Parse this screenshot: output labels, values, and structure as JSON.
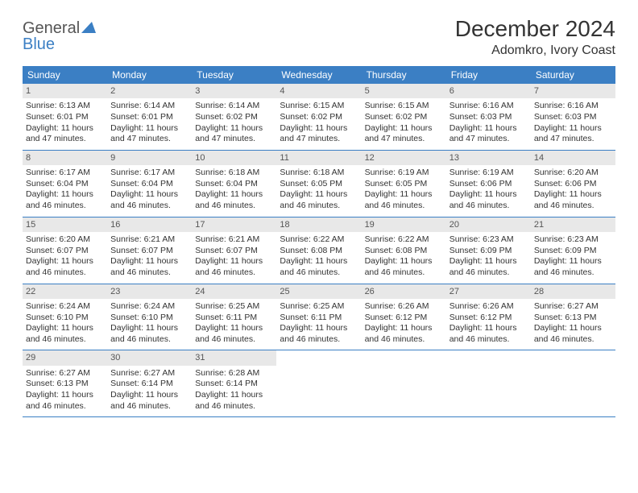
{
  "brand": {
    "part1": "General",
    "part2": "Blue"
  },
  "title": "December 2024",
  "location": "Adomkro, Ivory Coast",
  "colors": {
    "header_bg": "#3b7fc4",
    "header_fg": "#ffffff",
    "daynum_bg": "#e8e8e8",
    "text": "#333333"
  },
  "weekdays": [
    "Sunday",
    "Monday",
    "Tuesday",
    "Wednesday",
    "Thursday",
    "Friday",
    "Saturday"
  ],
  "weeks": [
    [
      {
        "n": "1",
        "sr": "6:13 AM",
        "ss": "6:01 PM",
        "dl": "11 hours and 47 minutes."
      },
      {
        "n": "2",
        "sr": "6:14 AM",
        "ss": "6:01 PM",
        "dl": "11 hours and 47 minutes."
      },
      {
        "n": "3",
        "sr": "6:14 AM",
        "ss": "6:02 PM",
        "dl": "11 hours and 47 minutes."
      },
      {
        "n": "4",
        "sr": "6:15 AM",
        "ss": "6:02 PM",
        "dl": "11 hours and 47 minutes."
      },
      {
        "n": "5",
        "sr": "6:15 AM",
        "ss": "6:02 PM",
        "dl": "11 hours and 47 minutes."
      },
      {
        "n": "6",
        "sr": "6:16 AM",
        "ss": "6:03 PM",
        "dl": "11 hours and 47 minutes."
      },
      {
        "n": "7",
        "sr": "6:16 AM",
        "ss": "6:03 PM",
        "dl": "11 hours and 47 minutes."
      }
    ],
    [
      {
        "n": "8",
        "sr": "6:17 AM",
        "ss": "6:04 PM",
        "dl": "11 hours and 46 minutes."
      },
      {
        "n": "9",
        "sr": "6:17 AM",
        "ss": "6:04 PM",
        "dl": "11 hours and 46 minutes."
      },
      {
        "n": "10",
        "sr": "6:18 AM",
        "ss": "6:04 PM",
        "dl": "11 hours and 46 minutes."
      },
      {
        "n": "11",
        "sr": "6:18 AM",
        "ss": "6:05 PM",
        "dl": "11 hours and 46 minutes."
      },
      {
        "n": "12",
        "sr": "6:19 AM",
        "ss": "6:05 PM",
        "dl": "11 hours and 46 minutes."
      },
      {
        "n": "13",
        "sr": "6:19 AM",
        "ss": "6:06 PM",
        "dl": "11 hours and 46 minutes."
      },
      {
        "n": "14",
        "sr": "6:20 AM",
        "ss": "6:06 PM",
        "dl": "11 hours and 46 minutes."
      }
    ],
    [
      {
        "n": "15",
        "sr": "6:20 AM",
        "ss": "6:07 PM",
        "dl": "11 hours and 46 minutes."
      },
      {
        "n": "16",
        "sr": "6:21 AM",
        "ss": "6:07 PM",
        "dl": "11 hours and 46 minutes."
      },
      {
        "n": "17",
        "sr": "6:21 AM",
        "ss": "6:07 PM",
        "dl": "11 hours and 46 minutes."
      },
      {
        "n": "18",
        "sr": "6:22 AM",
        "ss": "6:08 PM",
        "dl": "11 hours and 46 minutes."
      },
      {
        "n": "19",
        "sr": "6:22 AM",
        "ss": "6:08 PM",
        "dl": "11 hours and 46 minutes."
      },
      {
        "n": "20",
        "sr": "6:23 AM",
        "ss": "6:09 PM",
        "dl": "11 hours and 46 minutes."
      },
      {
        "n": "21",
        "sr": "6:23 AM",
        "ss": "6:09 PM",
        "dl": "11 hours and 46 minutes."
      }
    ],
    [
      {
        "n": "22",
        "sr": "6:24 AM",
        "ss": "6:10 PM",
        "dl": "11 hours and 46 minutes."
      },
      {
        "n": "23",
        "sr": "6:24 AM",
        "ss": "6:10 PM",
        "dl": "11 hours and 46 minutes."
      },
      {
        "n": "24",
        "sr": "6:25 AM",
        "ss": "6:11 PM",
        "dl": "11 hours and 46 minutes."
      },
      {
        "n": "25",
        "sr": "6:25 AM",
        "ss": "6:11 PM",
        "dl": "11 hours and 46 minutes."
      },
      {
        "n": "26",
        "sr": "6:26 AM",
        "ss": "6:12 PM",
        "dl": "11 hours and 46 minutes."
      },
      {
        "n": "27",
        "sr": "6:26 AM",
        "ss": "6:12 PM",
        "dl": "11 hours and 46 minutes."
      },
      {
        "n": "28",
        "sr": "6:27 AM",
        "ss": "6:13 PM",
        "dl": "11 hours and 46 minutes."
      }
    ],
    [
      {
        "n": "29",
        "sr": "6:27 AM",
        "ss": "6:13 PM",
        "dl": "11 hours and 46 minutes."
      },
      {
        "n": "30",
        "sr": "6:27 AM",
        "ss": "6:14 PM",
        "dl": "11 hours and 46 minutes."
      },
      {
        "n": "31",
        "sr": "6:28 AM",
        "ss": "6:14 PM",
        "dl": "11 hours and 46 minutes."
      },
      null,
      null,
      null,
      null
    ]
  ],
  "labels": {
    "sunrise": "Sunrise:",
    "sunset": "Sunset:",
    "daylight": "Daylight:"
  }
}
